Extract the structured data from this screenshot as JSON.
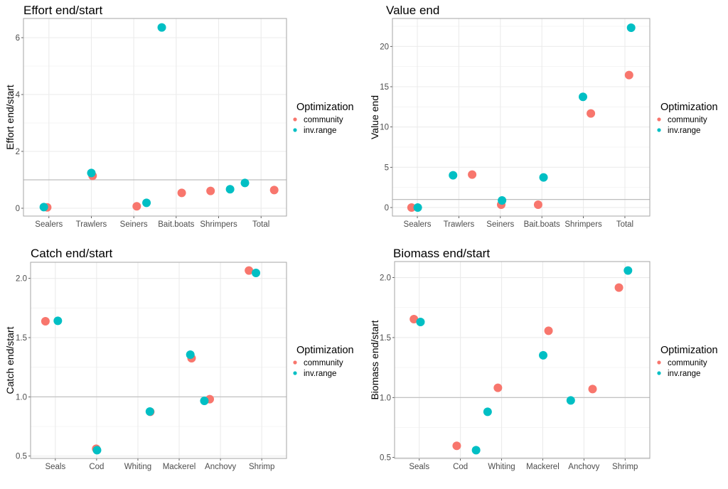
{
  "legend": {
    "title": "Optimization",
    "entries": [
      "community",
      "inv.range"
    ],
    "colors": {
      "community": "#F8766D",
      "inv.range": "#00BFC4"
    }
  },
  "chart_data": [
    {
      "type": "scatter",
      "title": "Effort end/start",
      "ylabel": "Effort end/start",
      "xlabel": "",
      "categories": [
        "Sealers",
        "Trawlers",
        "Seiners",
        "Bait.boats",
        "Shrimpers",
        "Total"
      ],
      "yticks": [
        "0",
        "2",
        "4",
        "6"
      ],
      "ytick_values": [
        0,
        2,
        4,
        6
      ],
      "ylim": [
        -0.275,
        6.675
      ],
      "reference_line": 1,
      "grid": true,
      "legend_position": "right",
      "series": [
        {
          "name": "community",
          "values": [
            0.03,
            1.14,
            0.07,
            0.54,
            0.61,
            0.64
          ]
        },
        {
          "name": "inv.range",
          "values": [
            0.04,
            1.24,
            0.19,
            6.36,
            0.67,
            0.89
          ]
        }
      ]
    },
    {
      "type": "scatter",
      "title": "Value end",
      "ylabel": "Value end",
      "xlabel": "",
      "categories": [
        "Sealers",
        "Trawlers",
        "Seiners",
        "Bait.boats",
        "Shrimpers",
        "Total"
      ],
      "yticks": [
        "0",
        "5",
        "10",
        "15",
        "20"
      ],
      "ytick_values": [
        0,
        5,
        10,
        15,
        20
      ],
      "ylim": [
        -1.06,
        23.47
      ],
      "reference_line": 1,
      "grid": true,
      "legend_position": "right",
      "series": [
        {
          "name": "community",
          "values": [
            0.0,
            4.09,
            0.35,
            0.35,
            11.68,
            16.44
          ]
        },
        {
          "name": "inv.range",
          "values": [
            0.0,
            4.0,
            0.88,
            3.74,
            13.74,
            22.32
          ]
        }
      ]
    },
    {
      "type": "scatter",
      "title": "Catch end/start",
      "ylabel": "Catch end/start",
      "xlabel": "",
      "categories": [
        "Seals",
        "Cod",
        "Whiting",
        "Mackerel",
        "Anchovy",
        "Shrimp"
      ],
      "yticks": [
        "0.5",
        "1.0",
        "1.5",
        "2.0"
      ],
      "ytick_values": [
        0.5,
        1.0,
        1.5,
        2.0
      ],
      "ylim": [
        0.48,
        2.136
      ],
      "reference_line": 1,
      "grid": true,
      "legend_position": "right",
      "series": [
        {
          "name": "community",
          "values": [
            1.638,
            0.562,
            0.874,
            1.326,
            0.98,
            2.066
          ]
        },
        {
          "name": "inv.range",
          "values": [
            1.642,
            0.55,
            0.876,
            1.356,
            0.966,
            2.046
          ]
        }
      ]
    },
    {
      "type": "scatter",
      "title": "Biomass end/start",
      "ylabel": "Biomass end/start",
      "xlabel": "",
      "categories": [
        "Seals",
        "Cod",
        "Whiting",
        "Mackerel",
        "Anchovy",
        "Shrimp"
      ],
      "yticks": [
        "0.5",
        "1.0",
        "1.5",
        "2.0"
      ],
      "ytick_values": [
        0.5,
        1.0,
        1.5,
        2.0
      ],
      "ylim": [
        0.492,
        2.134
      ],
      "reference_line": 1,
      "grid": true,
      "legend_position": "right",
      "series": [
        {
          "name": "community",
          "values": [
            1.654,
            0.597,
            1.081,
            1.557,
            1.071,
            1.917
          ]
        },
        {
          "name": "inv.range",
          "values": [
            1.63,
            0.561,
            0.881,
            1.352,
            0.976,
            2.059
          ]
        }
      ]
    }
  ]
}
